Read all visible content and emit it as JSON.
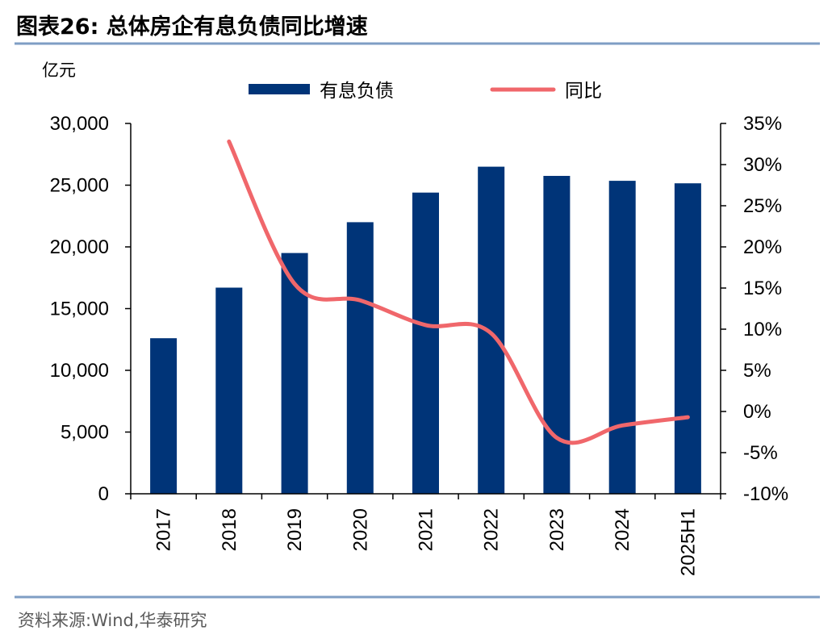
{
  "figure": {
    "title": "图表26:  总体房企有息负债同比增速",
    "source": "资料来源:Wind,华泰研究"
  },
  "colors": {
    "bar": "#003478",
    "line": "#F0676B",
    "rule": "#7F9EC4",
    "axis": "#000000"
  },
  "chart_data": {
    "type": "bar",
    "title": "总体房企有息负债同比增速",
    "unit_left": "亿元",
    "categories": [
      "2017",
      "2018",
      "2019",
      "2020",
      "2021",
      "2022",
      "2023",
      "2024",
      "2025H1"
    ],
    "series": [
      {
        "name": "有息负债",
        "type": "bar",
        "axis": "left",
        "values": [
          12600,
          16700,
          19500,
          22000,
          24400,
          26500,
          25750,
          25350,
          25150
        ]
      },
      {
        "name": "同比",
        "type": "line",
        "axis": "right",
        "values": [
          null,
          32.8,
          15.5,
          13.5,
          10.5,
          9.5,
          -3.2,
          -1.7,
          -0.7
        ]
      }
    ],
    "y_left": {
      "range": [
        0,
        30000
      ],
      "ticks": [
        0,
        5000,
        10000,
        15000,
        20000,
        25000,
        30000
      ],
      "tick_labels": [
        "0",
        "5,000",
        "10,000",
        "15,000",
        "20,000",
        "25,000",
        "30,000"
      ]
    },
    "y_right": {
      "range": [
        -10,
        35
      ],
      "ticks": [
        -10,
        -5,
        0,
        5,
        10,
        15,
        20,
        25,
        30,
        35
      ],
      "tick_labels": [
        "-10%",
        "-5%",
        "0%",
        "5%",
        "10%",
        "15%",
        "20%",
        "25%",
        "30%",
        "35%"
      ]
    },
    "legend": {
      "position": "top",
      "entries": [
        "有息负债",
        "同比"
      ]
    },
    "grid": false
  }
}
